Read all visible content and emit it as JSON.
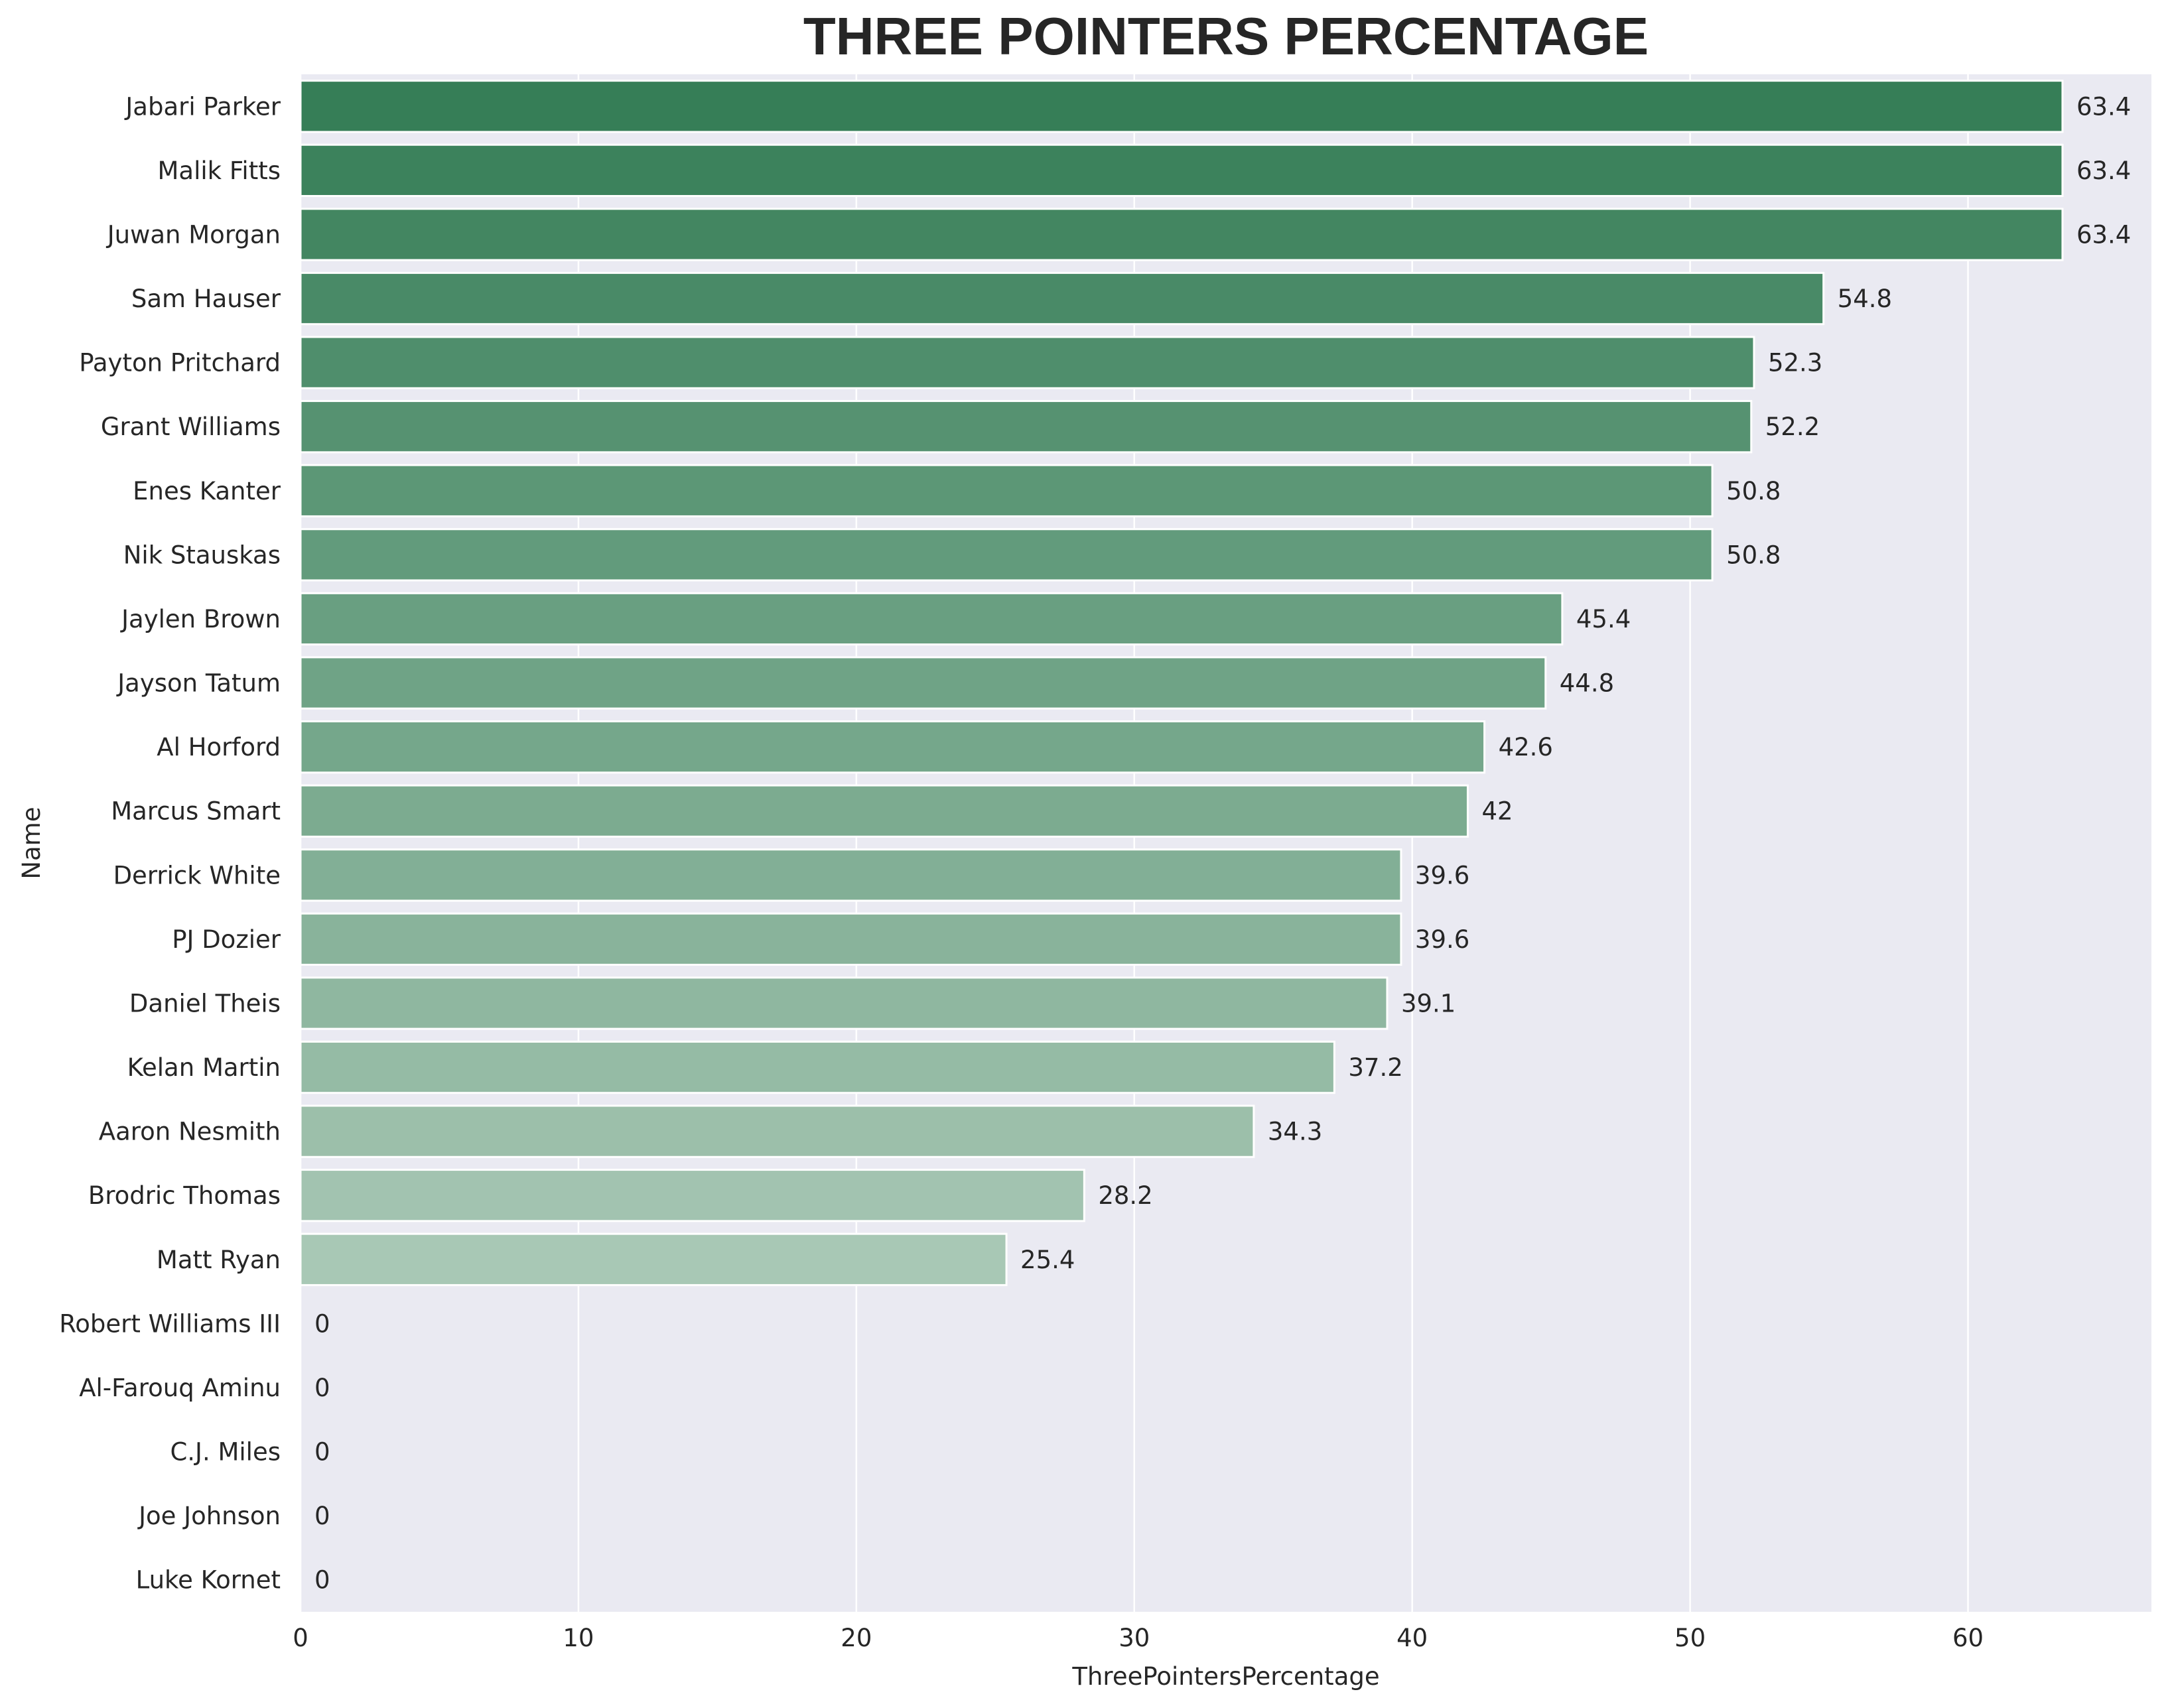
{
  "chart_data": {
    "type": "bar",
    "orientation": "horizontal",
    "title": "THREE POINTERS PERCENTAGE",
    "xlabel": "ThreePointersPercentage",
    "ylabel": "Name",
    "xlim": [
      0,
      66.6
    ],
    "xticks": [
      0,
      10,
      20,
      30,
      40,
      50,
      60
    ],
    "grid": true,
    "colors": {
      "background": "#eaeaf2",
      "grid": "#ffffff",
      "bar_start": "#367e57",
      "bar_end": "#c8dccf"
    },
    "categories": [
      "Jabari Parker",
      "Malik Fitts",
      "Juwan Morgan",
      "Sam Hauser",
      "Payton Pritchard",
      "Grant Williams",
      "Enes Kanter",
      "Nik Stauskas",
      "Jaylen Brown",
      "Jayson Tatum",
      "Al Horford",
      "Marcus Smart",
      "Derrick White",
      "PJ Dozier",
      "Daniel Theis",
      "Kelan Martin",
      "Aaron Nesmith",
      "Brodric Thomas",
      "Matt Ryan",
      "Robert Williams III",
      "Al-Farouq Aminu",
      "C.J. Miles",
      "Joe Johnson",
      "Luke Kornet"
    ],
    "values": [
      63.4,
      63.4,
      63.4,
      54.8,
      52.3,
      52.2,
      50.8,
      50.8,
      45.4,
      44.8,
      42.6,
      42,
      39.6,
      39.6,
      39.1,
      37.2,
      34.3,
      28.2,
      25.4,
      0,
      0,
      0,
      0,
      0
    ],
    "value_labels": [
      "63.4",
      "63.4",
      "63.4",
      "54.8",
      "52.3",
      "52.2",
      "50.8",
      "50.8",
      "45.4",
      "44.8",
      "42.6",
      "42",
      "39.6",
      "39.6",
      "39.1",
      "37.2",
      "34.3",
      "28.2",
      "25.4",
      "0",
      "0",
      "0",
      "0",
      "0"
    ]
  }
}
